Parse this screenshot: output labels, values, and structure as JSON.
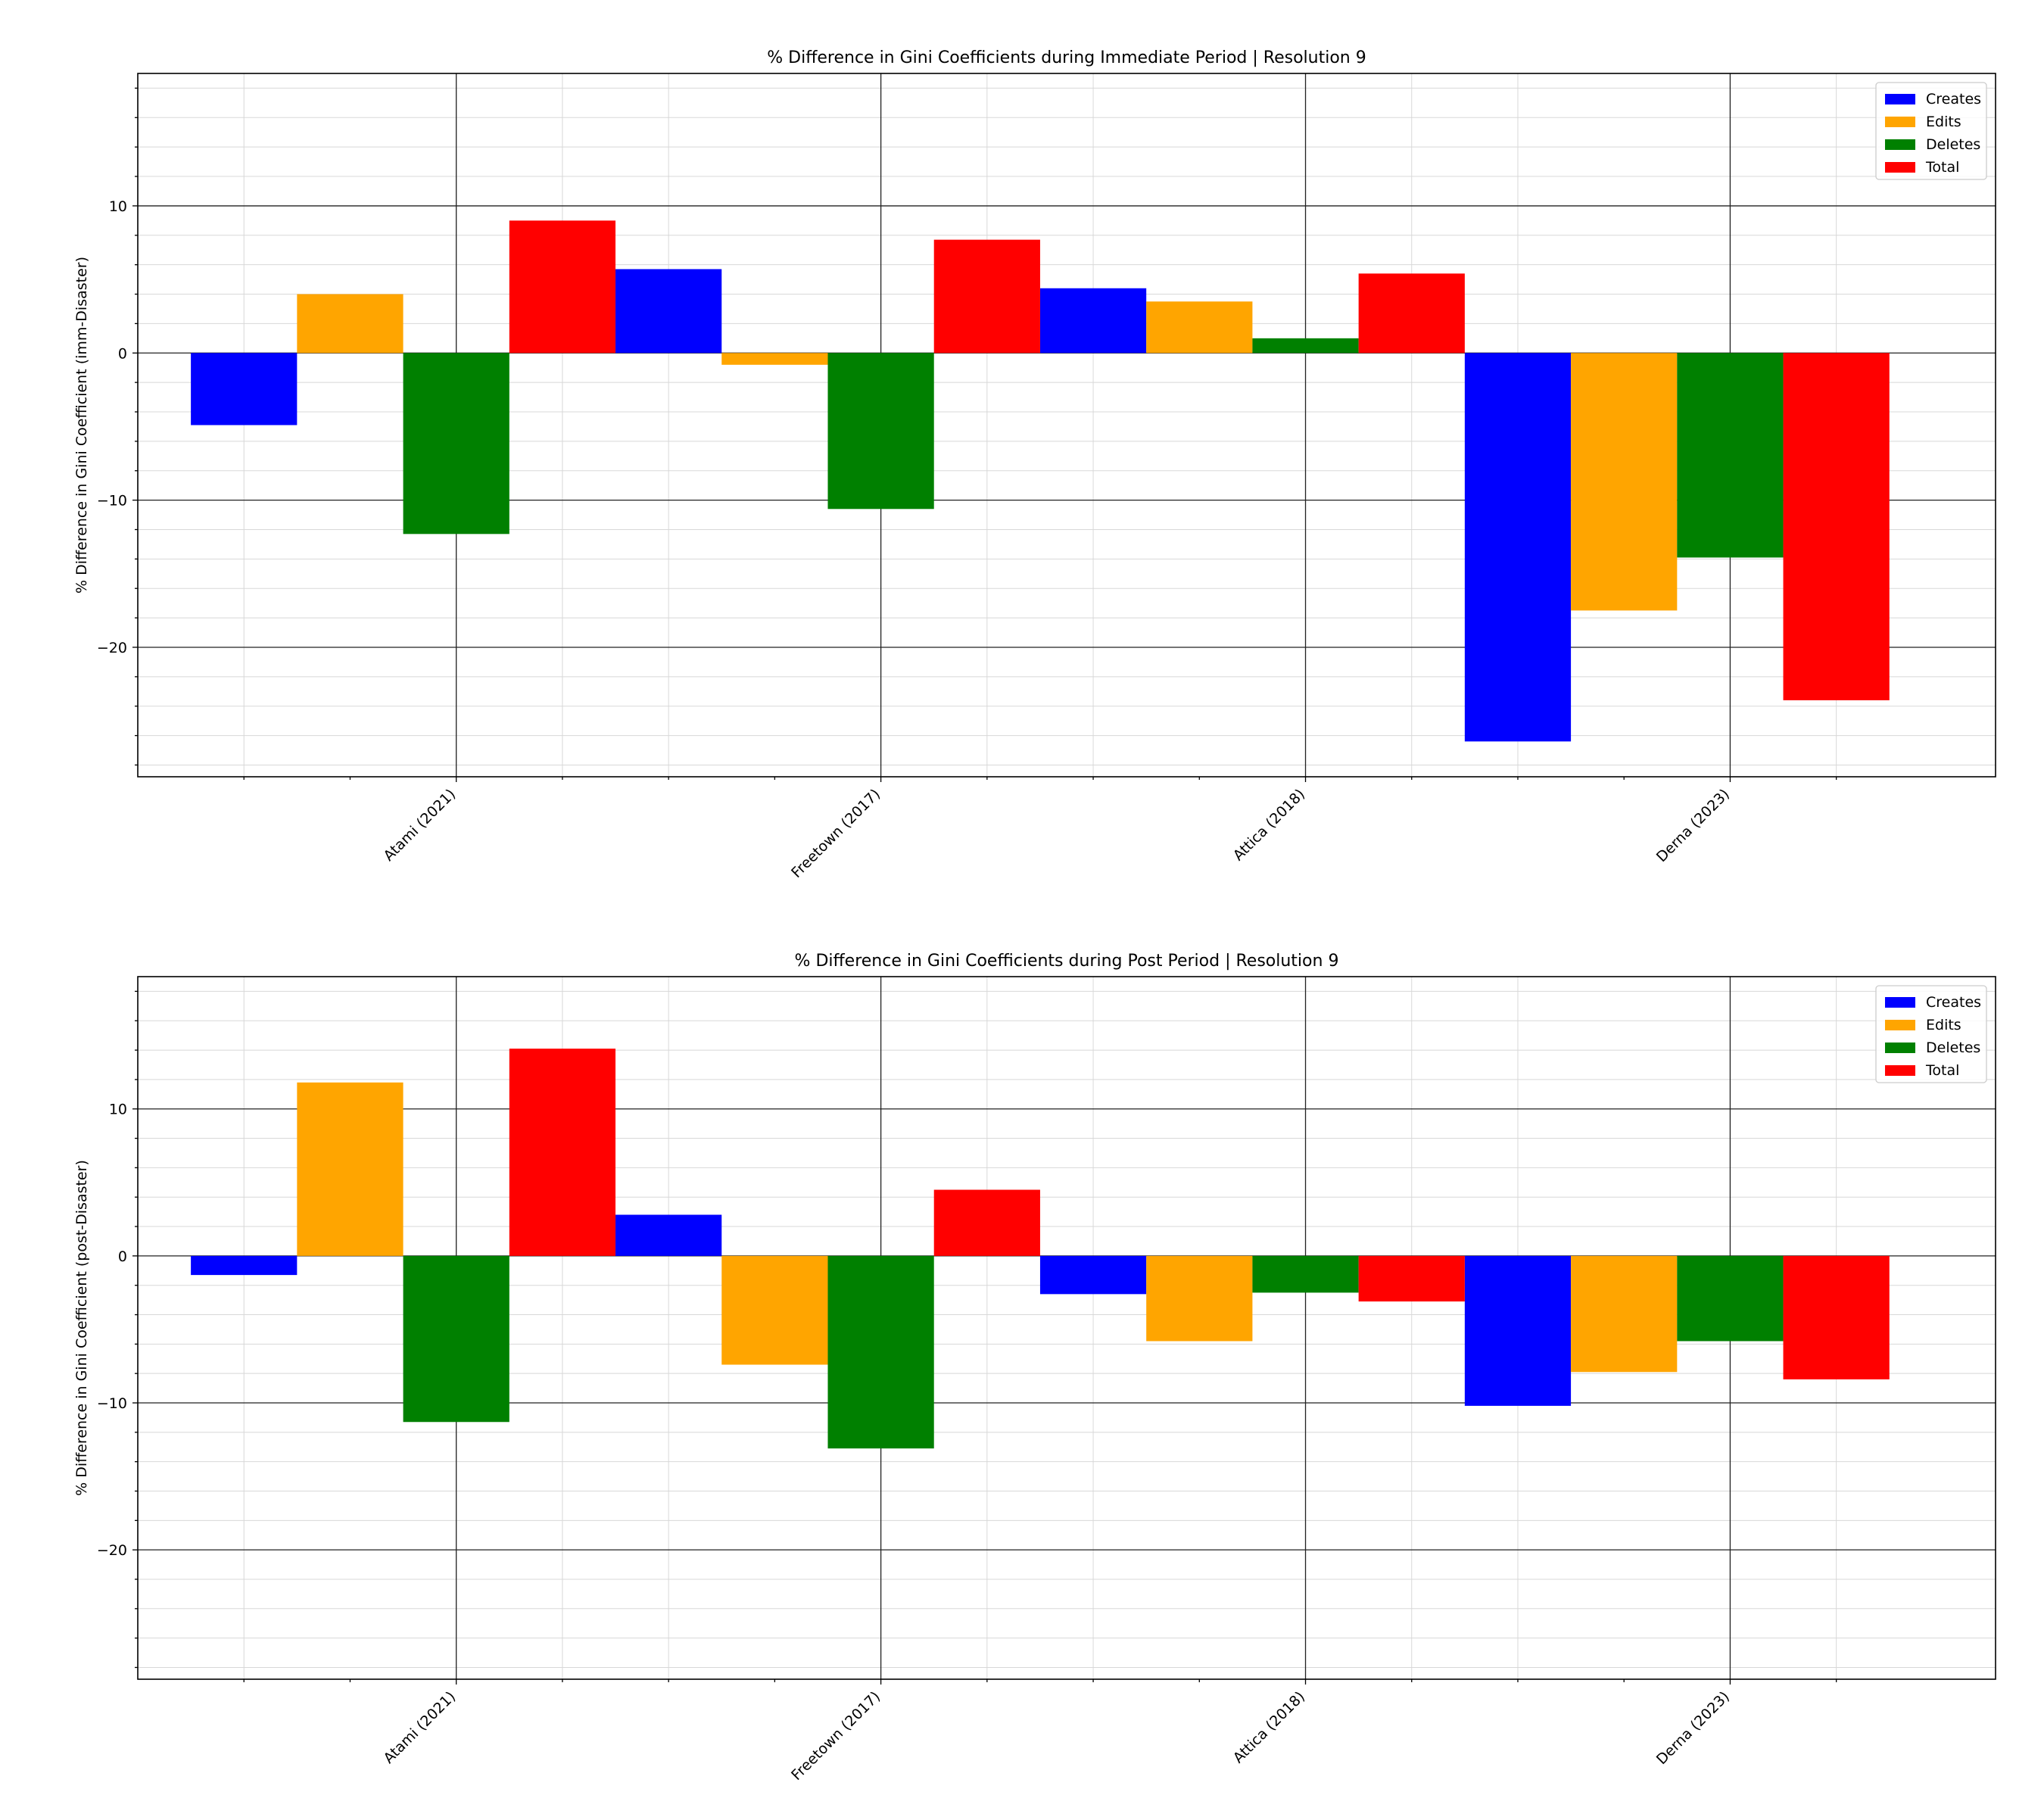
{
  "chart_data": [
    {
      "type": "bar",
      "title": "% Difference in Gini Coefficients during Immediate Period | Resolution 9",
      "xlabel": "",
      "ylabel": "% Difference in Gini Coefficient (imm-Disaster)",
      "categories": [
        "Atami (2021)",
        "Freetown (2017)",
        "Attica (2018)",
        "Derna (2023)"
      ],
      "ylim": [
        -28.8,
        19.0
      ],
      "yticks": [
        -20,
        -10,
        0,
        10
      ],
      "ytick_labels": [
        "−20",
        "−10",
        "0",
        "10"
      ],
      "grid": true,
      "legend": "top-right",
      "series": [
        {
          "name": "Creates",
          "color": "#0000ff",
          "values": [
            -4.9,
            5.7,
            4.4,
            -26.4
          ]
        },
        {
          "name": "Edits",
          "color": "#ffa500",
          "values": [
            4.0,
            -0.8,
            3.5,
            -17.5
          ]
        },
        {
          "name": "Deletes",
          "color": "#008000",
          "values": [
            -12.3,
            -10.6,
            1.0,
            -13.9
          ]
        },
        {
          "name": "Total",
          "color": "#ff0000",
          "values": [
            9.0,
            7.7,
            5.4,
            -23.6
          ]
        }
      ]
    },
    {
      "type": "bar",
      "title": "% Difference in Gini Coefficients during Post Period | Resolution 9",
      "xlabel": "",
      "ylabel": "% Difference in Gini Coefficient (post-Disaster)",
      "categories": [
        "Atami (2021)",
        "Freetown (2017)",
        "Attica (2018)",
        "Derna (2023)"
      ],
      "ylim": [
        -28.8,
        19.0
      ],
      "yticks": [
        -20,
        -10,
        0,
        10
      ],
      "ytick_labels": [
        "−20",
        "−10",
        "0",
        "10"
      ],
      "grid": true,
      "legend": "top-right",
      "series": [
        {
          "name": "Creates",
          "color": "#0000ff",
          "values": [
            -1.3,
            2.8,
            -2.6,
            -10.2
          ]
        },
        {
          "name": "Edits",
          "color": "#ffa500",
          "values": [
            11.8,
            -7.4,
            -5.8,
            -7.9
          ]
        },
        {
          "name": "Deletes",
          "color": "#008000",
          "values": [
            -11.3,
            -13.1,
            -2.5,
            -5.8
          ]
        },
        {
          "name": "Total",
          "color": "#ff0000",
          "values": [
            14.1,
            4.5,
            -3.1,
            -8.4
          ]
        }
      ]
    }
  ]
}
